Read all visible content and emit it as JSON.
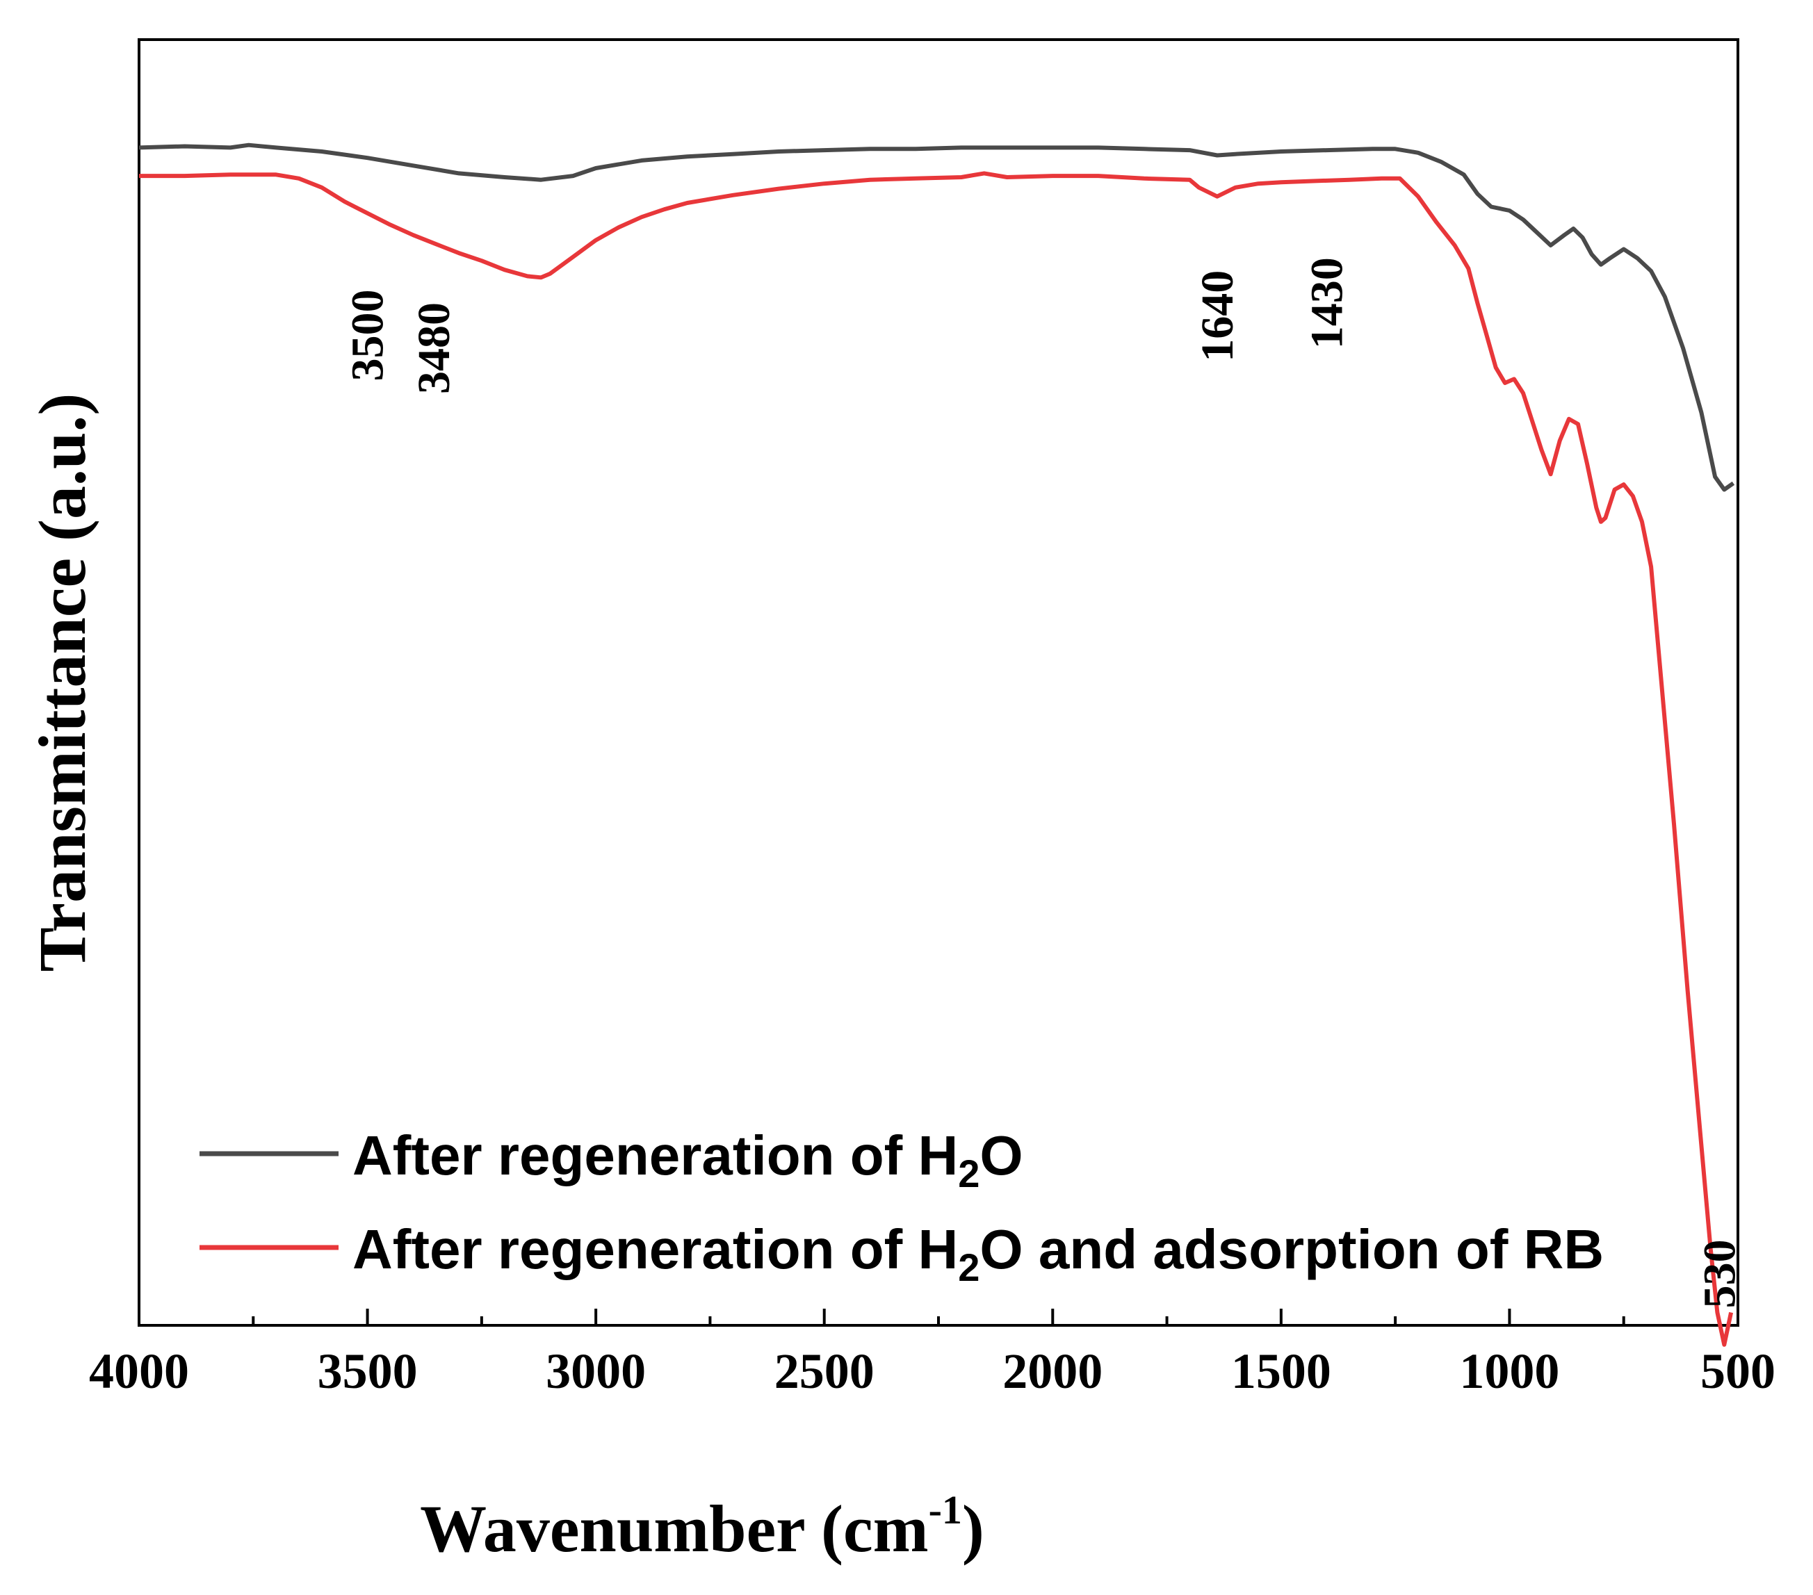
{
  "chart_data": {
    "type": "line",
    "title": "",
    "xlabel": "Wavenumber (cm",
    "xlabel_sup": "-1",
    "xlabel_close": ")",
    "ylabel": "Transmittance (a.u.)",
    "xlim": [
      4000,
      500
    ],
    "ylim": [
      0,
      100
    ],
    "x_reversed": true,
    "y_ticks_shown": false,
    "grid": false,
    "legend_position": "bottom-left",
    "xticks": [
      "4000",
      "3500",
      "3000",
      "2500",
      "2000",
      "1500",
      "1000",
      "500"
    ],
    "series": [
      {
        "name": "After regeneration of H2O",
        "legend_parts": [
          "After regeneration of H",
          "2",
          "O"
        ],
        "color": "#4a4a4a",
        "points": [
          [
            4000,
            91.6
          ],
          [
            3900,
            91.7
          ],
          [
            3800,
            91.6
          ],
          [
            3760,
            91.8
          ],
          [
            3700,
            91.6
          ],
          [
            3600,
            91.3
          ],
          [
            3500,
            90.8
          ],
          [
            3400,
            90.2
          ],
          [
            3300,
            89.6
          ],
          [
            3200,
            89.3
          ],
          [
            3120,
            89.1
          ],
          [
            3050,
            89.4
          ],
          [
            3000,
            90.0
          ],
          [
            2900,
            90.6
          ],
          [
            2800,
            90.9
          ],
          [
            2700,
            91.1
          ],
          [
            2600,
            91.3
          ],
          [
            2500,
            91.4
          ],
          [
            2400,
            91.5
          ],
          [
            2300,
            91.5
          ],
          [
            2200,
            91.6
          ],
          [
            2100,
            91.6
          ],
          [
            2000,
            91.6
          ],
          [
            1900,
            91.6
          ],
          [
            1800,
            91.5
          ],
          [
            1700,
            91.4
          ],
          [
            1640,
            91.0
          ],
          [
            1600,
            91.1
          ],
          [
            1500,
            91.3
          ],
          [
            1400,
            91.4
          ],
          [
            1300,
            91.5
          ],
          [
            1250,
            91.5
          ],
          [
            1200,
            91.2
          ],
          [
            1150,
            90.5
          ],
          [
            1100,
            89.5
          ],
          [
            1070,
            88.0
          ],
          [
            1040,
            87.0
          ],
          [
            1000,
            86.7
          ],
          [
            970,
            86.0
          ],
          [
            940,
            85.0
          ],
          [
            910,
            84.0
          ],
          [
            880,
            84.8
          ],
          [
            860,
            85.3
          ],
          [
            840,
            84.6
          ],
          [
            820,
            83.3
          ],
          [
            800,
            82.5
          ],
          [
            780,
            83.0
          ],
          [
            750,
            83.7
          ],
          [
            720,
            83.0
          ],
          [
            690,
            82.0
          ],
          [
            660,
            80.0
          ],
          [
            620,
            76.0
          ],
          [
            580,
            71.0
          ],
          [
            550,
            66.0
          ],
          [
            530,
            65.0
          ],
          [
            510,
            65.5
          ]
        ]
      },
      {
        "name": "After regeneration of H2O and adsorption of RB",
        "legend_parts": [
          "After regeneration of H",
          "2",
          "O and adsorption of RB"
        ],
        "color": "#e8373a",
        "points": [
          [
            4000,
            89.4
          ],
          [
            3900,
            89.4
          ],
          [
            3800,
            89.5
          ],
          [
            3700,
            89.5
          ],
          [
            3650,
            89.2
          ],
          [
            3600,
            88.5
          ],
          [
            3550,
            87.4
          ],
          [
            3500,
            86.5
          ],
          [
            3450,
            85.6
          ],
          [
            3400,
            84.8
          ],
          [
            3350,
            84.1
          ],
          [
            3300,
            83.4
          ],
          [
            3250,
            82.8
          ],
          [
            3200,
            82.1
          ],
          [
            3150,
            81.6
          ],
          [
            3120,
            81.5
          ],
          [
            3100,
            81.8
          ],
          [
            3050,
            83.1
          ],
          [
            3000,
            84.4
          ],
          [
            2950,
            85.4
          ],
          [
            2900,
            86.2
          ],
          [
            2850,
            86.8
          ],
          [
            2800,
            87.3
          ],
          [
            2700,
            87.9
          ],
          [
            2600,
            88.4
          ],
          [
            2500,
            88.8
          ],
          [
            2400,
            89.1
          ],
          [
            2300,
            89.2
          ],
          [
            2200,
            89.3
          ],
          [
            2150,
            89.6
          ],
          [
            2100,
            89.3
          ],
          [
            2000,
            89.4
          ],
          [
            1900,
            89.4
          ],
          [
            1800,
            89.2
          ],
          [
            1700,
            89.1
          ],
          [
            1680,
            88.5
          ],
          [
            1640,
            87.8
          ],
          [
            1600,
            88.5
          ],
          [
            1550,
            88.8
          ],
          [
            1500,
            88.9
          ],
          [
            1430,
            89.0
          ],
          [
            1350,
            89.1
          ],
          [
            1280,
            89.2
          ],
          [
            1240,
            89.2
          ],
          [
            1200,
            87.8
          ],
          [
            1160,
            85.8
          ],
          [
            1120,
            84.0
          ],
          [
            1090,
            82.2
          ],
          [
            1070,
            79.5
          ],
          [
            1050,
            77.0
          ],
          [
            1030,
            74.5
          ],
          [
            1010,
            73.3
          ],
          [
            990,
            73.6
          ],
          [
            970,
            72.5
          ],
          [
            950,
            70.3
          ],
          [
            930,
            68.1
          ],
          [
            910,
            66.2
          ],
          [
            890,
            68.8
          ],
          [
            870,
            70.5
          ],
          [
            850,
            70.1
          ],
          [
            830,
            67.0
          ],
          [
            810,
            63.6
          ],
          [
            800,
            62.5
          ],
          [
            790,
            62.8
          ],
          [
            770,
            65.0
          ],
          [
            750,
            65.4
          ],
          [
            730,
            64.5
          ],
          [
            710,
            62.5
          ],
          [
            690,
            59.0
          ],
          [
            670,
            51.0
          ],
          [
            640,
            39.0
          ],
          [
            610,
            26.0
          ],
          [
            580,
            14.0
          ],
          [
            560,
            6.0
          ],
          [
            545,
            1.0
          ],
          [
            530,
            -1.5
          ],
          [
            515,
            1.0
          ]
        ]
      }
    ],
    "annotations": [
      {
        "text": "3500",
        "x": 3500,
        "y": 77
      },
      {
        "text": "3480",
        "x": 3355,
        "y": 76
      },
      {
        "text": "1640",
        "x": 1640,
        "y": 78.5
      },
      {
        "text": "1430",
        "x": 1400,
        "y": 79.5
      },
      {
        "text": "530",
        "x": 540,
        "y": 4
      }
    ]
  }
}
